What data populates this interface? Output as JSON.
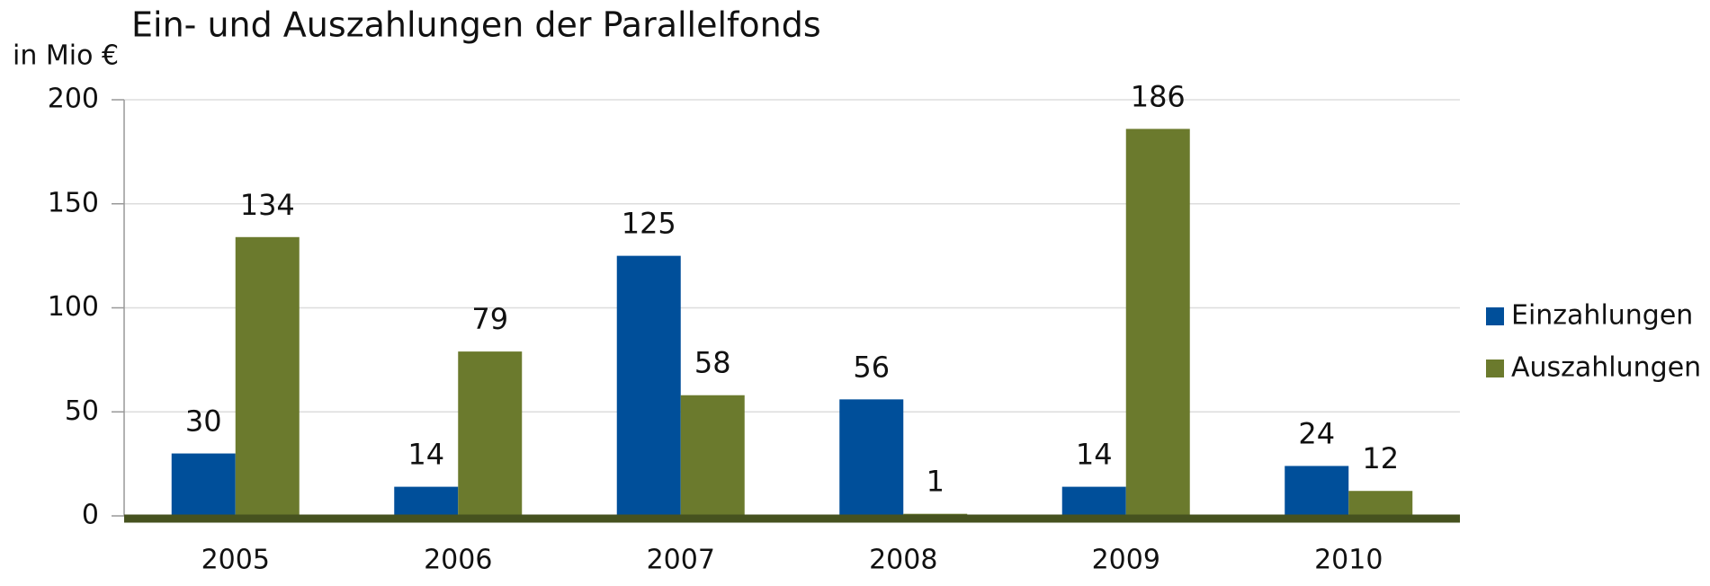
{
  "chart_data": {
    "type": "bar",
    "title": "Ein- und Auszahlungen der Parallelfonds",
    "y_label": "in Mio €",
    "categories": [
      "2005",
      "2006",
      "2007",
      "2008",
      "2009",
      "2010"
    ],
    "series": [
      {
        "name": "Einzahlungen",
        "color": "#004f9a",
        "values": [
          30,
          14,
          125,
          56,
          14,
          24
        ]
      },
      {
        "name": "Auszahlungen",
        "color": "#6b7a2d",
        "values": [
          134,
          79,
          58,
          1,
          186,
          12
        ]
      }
    ],
    "ylim": [
      0,
      200
    ],
    "yticks": [
      0,
      50,
      100,
      150,
      200
    ],
    "grid": true,
    "legend": "right"
  }
}
